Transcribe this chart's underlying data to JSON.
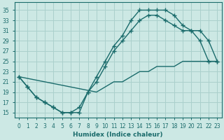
{
  "xlabel": "Humidex (Indice chaleur)",
  "bg_color": "#cce8e4",
  "line_color": "#1a6b6b",
  "grid_color": "#aad0cc",
  "xlim": [
    -0.5,
    23.5
  ],
  "ylim": [
    14.0,
    36.5
  ],
  "xticks": [
    0,
    1,
    2,
    3,
    4,
    5,
    6,
    7,
    8,
    9,
    10,
    11,
    12,
    13,
    14,
    15,
    16,
    17,
    18,
    19,
    20,
    21,
    22,
    23
  ],
  "yticks": [
    15,
    17,
    19,
    21,
    23,
    25,
    27,
    29,
    31,
    33,
    35
  ],
  "curve_upper_x": [
    0,
    1,
    2,
    3,
    4,
    5,
    6,
    7,
    8,
    9,
    10,
    11,
    12,
    13,
    14,
    15,
    16,
    17,
    18,
    19,
    20,
    21,
    22,
    23
  ],
  "curve_upper_y": [
    22,
    20,
    18,
    17,
    16,
    15,
    15,
    16,
    19,
    22,
    25,
    28,
    30,
    33,
    35,
    35,
    35,
    35,
    34,
    32,
    31,
    29,
    25,
    25
  ],
  "curve_mid_x": [
    0,
    1,
    2,
    3,
    4,
    5,
    6,
    7,
    8,
    9,
    10,
    11,
    12,
    13,
    14,
    15,
    16,
    17,
    18,
    19,
    20,
    21,
    22,
    23
  ],
  "curve_mid_y": [
    22,
    20,
    18,
    17,
    16,
    15,
    15,
    15,
    19,
    21,
    24,
    27,
    29,
    31,
    33,
    34,
    34,
    33,
    32,
    31,
    31,
    31,
    29,
    25
  ],
  "curve_low_x": [
    0,
    9,
    10,
    11,
    12,
    13,
    14,
    15,
    16,
    17,
    18,
    19,
    20,
    21,
    22,
    23
  ],
  "curve_low_y": [
    22,
    19,
    20,
    21,
    21,
    22,
    23,
    23,
    24,
    24,
    24,
    25,
    25,
    25,
    25,
    25
  ]
}
